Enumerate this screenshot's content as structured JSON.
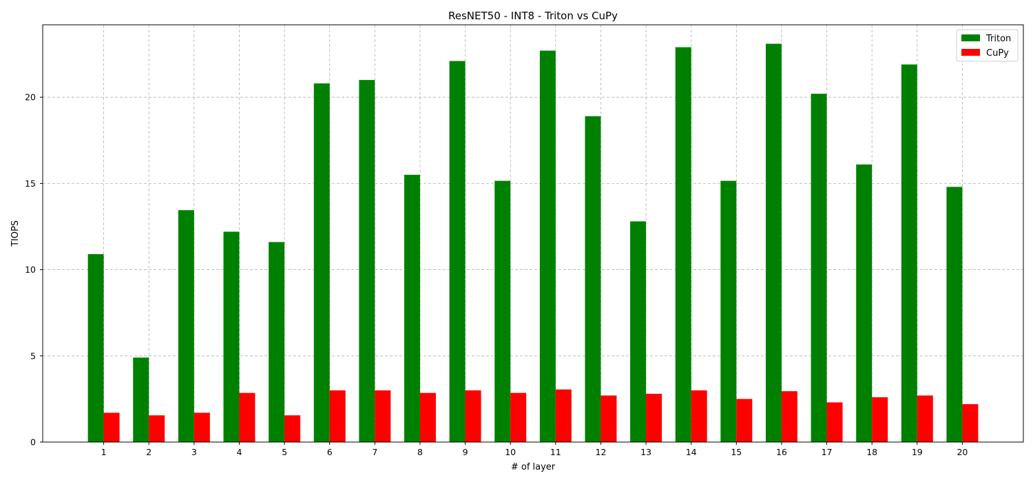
{
  "chart_data": {
    "type": "bar",
    "title": "ResNET50 - INT8 - Triton vs CuPy",
    "xlabel": "# of layer",
    "ylabel": "TIOPS",
    "categories": [
      "1",
      "2",
      "3",
      "4",
      "5",
      "6",
      "7",
      "8",
      "9",
      "10",
      "11",
      "12",
      "13",
      "14",
      "15",
      "16",
      "17",
      "18",
      "19",
      "20"
    ],
    "series": [
      {
        "name": "Triton",
        "color": "#008000",
        "values": [
          10.9,
          4.9,
          13.45,
          12.2,
          11.6,
          20.8,
          21.0,
          15.5,
          22.1,
          15.15,
          22.7,
          18.9,
          12.8,
          22.9,
          15.15,
          23.1,
          20.2,
          16.1,
          21.9,
          14.8
        ]
      },
      {
        "name": "CuPy",
        "color": "#ff0000",
        "values": [
          1.7,
          1.55,
          1.7,
          2.85,
          1.55,
          3.0,
          3.0,
          2.85,
          3.0,
          2.85,
          3.05,
          2.7,
          2.8,
          3.0,
          2.5,
          2.95,
          2.3,
          2.6,
          2.7,
          2.2
        ]
      }
    ],
    "ylim": [
      0,
      24.2
    ],
    "yticks": [
      0,
      5,
      10,
      15,
      20
    ],
    "grid": true,
    "legend": "top-right"
  }
}
